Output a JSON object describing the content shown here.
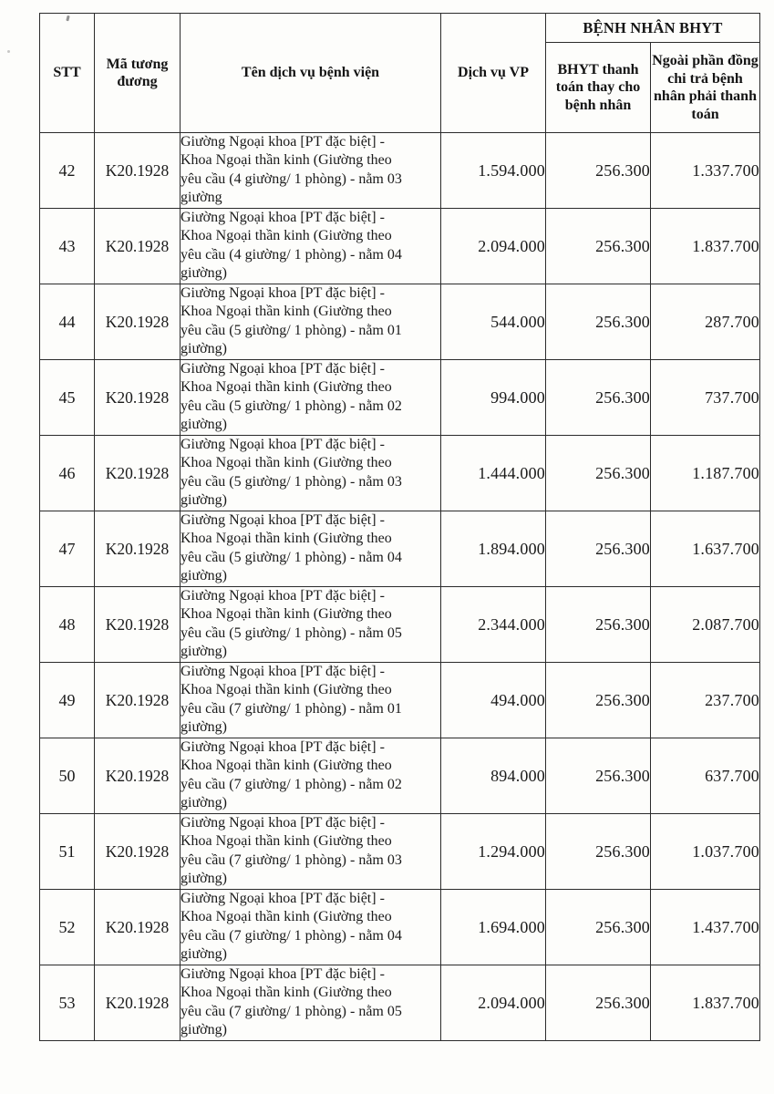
{
  "table": {
    "headers": {
      "stt": "STT",
      "code": "Mã tương đương",
      "service": "Tên dịch vụ bệnh viện",
      "vp": "Dịch vụ VP",
      "group": "BỆNH NHÂN BHYT",
      "bhyt_pays": "BHYT thanh toán thay cho bệnh nhân",
      "copay": "Ngoài phần đồng chi trả bệnh nhân phải thanh toán"
    },
    "rows": [
      {
        "stt": "42",
        "code": "K20.1928",
        "service": "Giường Ngoại khoa [PT đặc biệt] - Khoa Ngoại thần kinh (Giường theo yêu cầu (4 giường/ 1 phòng) - nằm 03 giường",
        "service_lines": [
          "Giường Ngoại khoa [PT đặc biệt] -",
          "Khoa Ngoại thần kinh (Giường theo",
          "yêu cầu (4 giường/ 1 phòng) - nằm 03",
          "giường"
        ],
        "vp": "1.594.000",
        "bhyt": "256.300",
        "patient": "1.337.700"
      },
      {
        "stt": "43",
        "code": "K20.1928",
        "service": "Giường Ngoại khoa [PT đặc biệt] - Khoa Ngoại thần kinh (Giường theo yêu cầu (4 giường/ 1 phòng) - nằm 04 giường)",
        "service_lines": [
          "Giường Ngoại khoa [PT đặc biệt] -",
          "Khoa Ngoại thần kinh (Giường theo",
          "yêu cầu (4 giường/ 1 phòng) - nằm 04",
          "giường)"
        ],
        "vp": "2.094.000",
        "bhyt": "256.300",
        "patient": "1.837.700"
      },
      {
        "stt": "44",
        "code": "K20.1928",
        "service": "Giường Ngoại khoa [PT đặc biệt] - Khoa Ngoại thần kinh (Giường theo yêu cầu (5 giường/ 1 phòng) - nằm 01 giường)",
        "service_lines": [
          "Giường Ngoại khoa [PT đặc biệt] -",
          "Khoa Ngoại thần kinh (Giường theo",
          "yêu cầu (5 giường/ 1 phòng) - nằm 01",
          "giường)"
        ],
        "vp": "544.000",
        "bhyt": "256.300",
        "patient": "287.700"
      },
      {
        "stt": "45",
        "code": "K20.1928",
        "service": "Giường Ngoại khoa [PT đặc biệt] - Khoa Ngoại thần kinh (Giường theo yêu cầu (5 giường/ 1 phòng) - nằm 02 giường)",
        "service_lines": [
          "Giường Ngoại khoa [PT đặc biệt] -",
          "Khoa Ngoại thần kinh (Giường theo",
          "yêu cầu (5 giường/ 1 phòng) - nằm 02",
          "giường)"
        ],
        "vp": "994.000",
        "bhyt": "256.300",
        "patient": "737.700"
      },
      {
        "stt": "46",
        "code": "K20.1928",
        "service": "Giường Ngoại khoa [PT đặc biệt] - Khoa Ngoại thần kinh (Giường theo yêu cầu (5 giường/ 1 phòng) - nằm 03 giường)",
        "service_lines": [
          "Giường Ngoại khoa [PT đặc biệt] -",
          "Khoa Ngoại thần kinh (Giường theo",
          "yêu cầu (5 giường/ 1 phòng) - nằm 03",
          "giường)"
        ],
        "vp": "1.444.000",
        "bhyt": "256.300",
        "patient": "1.187.700"
      },
      {
        "stt": "47",
        "code": "K20.1928",
        "service": "Giường Ngoại khoa [PT đặc biệt] - Khoa Ngoại thần kinh (Giường theo yêu cầu (5 giường/ 1 phòng) - nằm 04 giường)",
        "service_lines": [
          "Giường Ngoại khoa [PT đặc biệt] -",
          "Khoa Ngoại thần kinh (Giường theo",
          "yêu cầu (5 giường/ 1 phòng) - nằm 04",
          "giường)"
        ],
        "vp": "1.894.000",
        "bhyt": "256.300",
        "patient": "1.637.700"
      },
      {
        "stt": "48",
        "code": "K20.1928",
        "service": "Giường Ngoại khoa [PT đặc biệt] - Khoa Ngoại thần kinh (Giường theo yêu cầu (5 giường/ 1 phòng) - nằm 05 giường)",
        "service_lines": [
          "Giường Ngoại khoa [PT đặc biệt] -",
          "Khoa Ngoại thần kinh (Giường theo",
          "yêu cầu (5 giường/ 1 phòng) - nằm 05",
          "giường)"
        ],
        "vp": "2.344.000",
        "bhyt": "256.300",
        "patient": "2.087.700"
      },
      {
        "stt": "49",
        "code": "K20.1928",
        "service": "Giường Ngoại khoa [PT đặc biệt] - Khoa Ngoại thần kinh (Giường theo yêu cầu (7 giường/ 1 phòng) - nằm 01 giường)",
        "service_lines": [
          "Giường Ngoại khoa [PT đặc biệt] -",
          "Khoa Ngoại thần kinh (Giường theo",
          "yêu cầu (7 giường/ 1 phòng) - nằm 01",
          "giường)"
        ],
        "vp": "494.000",
        "bhyt": "256.300",
        "patient": "237.700"
      },
      {
        "stt": "50",
        "code": "K20.1928",
        "service": "Giường Ngoại khoa [PT đặc biệt] - Khoa Ngoại thần kinh (Giường theo yêu cầu (7 giường/ 1 phòng) - nằm 02 giường)",
        "service_lines": [
          "Giường Ngoại khoa [PT đặc biệt] -",
          "Khoa Ngoại thần kinh (Giường theo",
          "yêu cầu (7 giường/ 1 phòng) - nằm 02",
          "giường)"
        ],
        "vp": "894.000",
        "bhyt": "256.300",
        "patient": "637.700"
      },
      {
        "stt": "51",
        "code": "K20.1928",
        "service": "Giường Ngoại khoa [PT đặc biệt] - Khoa Ngoại thần kinh (Giường theo yêu cầu (7 giường/ 1 phòng) - nằm 03 giường)",
        "service_lines": [
          "Giường Ngoại khoa [PT đặc biệt] -",
          "Khoa Ngoại thần kinh (Giường theo",
          "yêu cầu (7 giường/ 1 phòng) - nằm 03",
          "giường)"
        ],
        "vp": "1.294.000",
        "bhyt": "256.300",
        "patient": "1.037.700"
      },
      {
        "stt": "52",
        "code": "K20.1928",
        "service": "Giường Ngoại khoa [PT đặc biệt] - Khoa Ngoại thần kinh (Giường theo yêu cầu (7 giường/ 1 phòng) - nằm 04 giường)",
        "service_lines": [
          "Giường Ngoại khoa [PT đặc biệt] -",
          "Khoa Ngoại thần kinh (Giường theo",
          "yêu cầu (7 giường/ 1 phòng) - nằm 04",
          "giường)"
        ],
        "vp": "1.694.000",
        "bhyt": "256.300",
        "patient": "1.437.700"
      },
      {
        "stt": "53",
        "code": "K20.1928",
        "service": "Giường Ngoại khoa [PT đặc biệt] - Khoa Ngoại thần kinh (Giường theo yêu cầu (7 giường/ 1 phòng) - nằm 05 giường)",
        "service_lines": [
          "Giường Ngoại khoa [PT đặc biệt] -",
          "Khoa Ngoại thần kinh (Giường theo",
          "yêu cầu (7 giường/ 1 phòng) - nằm 05",
          "giường)"
        ],
        "vp": "2.094.000",
        "bhyt": "256.300",
        "patient": "1.837.700"
      }
    ]
  }
}
